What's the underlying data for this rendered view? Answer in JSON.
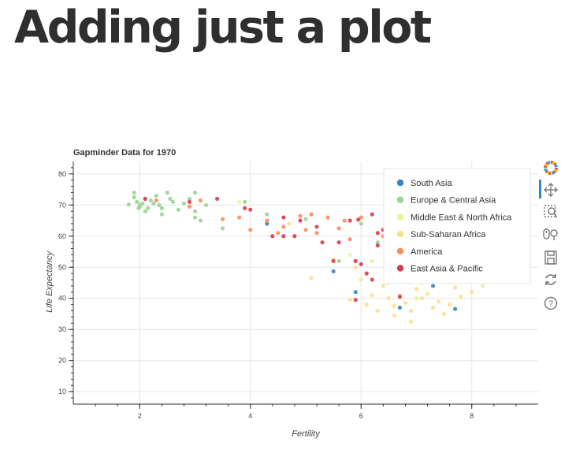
{
  "slide": {
    "title": "Adding just a plot"
  },
  "chart_data": {
    "type": "scatter",
    "title": "Gapminder Data for 1970",
    "xlabel": "Fertility",
    "ylabel": "Life Expectancy",
    "xlim": [
      0.8,
      9.2
    ],
    "ylim": [
      6,
      84
    ],
    "xticks": [
      2,
      4,
      6,
      8
    ],
    "yticks": [
      10,
      20,
      30,
      40,
      50,
      60,
      70,
      80
    ],
    "grid": true,
    "legend_position": "top-right",
    "series": [
      {
        "name": "South Asia",
        "color": "#3288bd",
        "points": [
          [
            5.5,
            48.7
          ],
          [
            5.9,
            42
          ],
          [
            6.7,
            37
          ],
          [
            7.3,
            44
          ],
          [
            7.7,
            36.6
          ],
          [
            4.3,
            64
          ]
        ]
      },
      {
        "name": "Europe & Central Asia",
        "color": "#99d594",
        "points": [
          [
            1.8,
            70.2
          ],
          [
            1.9,
            74
          ],
          [
            1.95,
            71
          ],
          [
            2.0,
            69.5
          ],
          [
            2.05,
            70.5
          ],
          [
            2.1,
            72
          ],
          [
            2.2,
            71.5
          ],
          [
            2.3,
            73
          ],
          [
            2.35,
            70
          ],
          [
            2.4,
            69
          ],
          [
            2.5,
            74
          ],
          [
            2.55,
            72
          ],
          [
            2.6,
            71
          ],
          [
            2.7,
            68.5
          ],
          [
            2.4,
            67
          ],
          [
            2.1,
            68
          ],
          [
            2.9,
            72
          ],
          [
            3.0,
            68
          ],
          [
            3.1,
            65
          ],
          [
            3.2,
            70
          ],
          [
            3.0,
            74
          ],
          [
            2.8,
            70.5
          ],
          [
            1.9,
            72.5
          ],
          [
            2.0,
            70
          ],
          [
            2.15,
            69
          ],
          [
            2.25,
            70.5
          ],
          [
            3.5,
            62.5
          ],
          [
            3.9,
            71
          ],
          [
            4.3,
            67
          ],
          [
            5.0,
            65.5
          ],
          [
            5.6,
            52
          ],
          [
            6.0,
            64
          ],
          [
            6.3,
            58
          ],
          [
            3.0,
            66
          ],
          [
            1.98,
            69
          ]
        ]
      },
      {
        "name": "Middle East & North Africa",
        "color": "#e6f598",
        "points": [
          [
            3.8,
            71
          ],
          [
            5.8,
            54
          ],
          [
            6.2,
            52
          ],
          [
            6.5,
            45
          ],
          [
            7.0,
            47
          ],
          [
            7.3,
            51
          ],
          [
            7.8,
            55
          ],
          [
            8.2,
            44
          ],
          [
            7.0,
            40
          ],
          [
            6.8,
            48
          ]
        ]
      },
      {
        "name": "Sub-Saharan Africa",
        "color": "#fee08b",
        "points": [
          [
            5.1,
            46.5
          ],
          [
            5.8,
            39.5
          ],
          [
            6.1,
            38
          ],
          [
            6.3,
            36
          ],
          [
            6.5,
            40
          ],
          [
            6.6,
            34.5
          ],
          [
            6.7,
            41
          ],
          [
            6.8,
            38.5
          ],
          [
            6.9,
            32.5
          ],
          [
            6.9,
            36
          ],
          [
            7.0,
            43
          ],
          [
            7.1,
            40
          ],
          [
            7.2,
            41.5
          ],
          [
            7.3,
            37
          ],
          [
            7.4,
            39
          ],
          [
            7.5,
            35
          ],
          [
            7.6,
            38
          ],
          [
            7.7,
            43.5
          ],
          [
            7.8,
            40.5
          ],
          [
            8.0,
            42
          ],
          [
            6.4,
            44
          ],
          [
            6.0,
            46
          ],
          [
            6.2,
            41
          ],
          [
            6.6,
            37.5
          ],
          [
            7.1,
            45
          ],
          [
            5.5,
            52.5
          ],
          [
            4.7,
            64
          ],
          [
            5.9,
            50
          ]
        ]
      },
      {
        "name": "America",
        "color": "#fc8d59",
        "points": [
          [
            2.3,
            71.5
          ],
          [
            2.9,
            69.5
          ],
          [
            3.1,
            71.5
          ],
          [
            3.5,
            65.5
          ],
          [
            3.8,
            66
          ],
          [
            4.0,
            62
          ],
          [
            4.3,
            65
          ],
          [
            4.6,
            63
          ],
          [
            4.9,
            66.5
          ],
          [
            5.1,
            67
          ],
          [
            5.4,
            66
          ],
          [
            5.6,
            62.5
          ],
          [
            5.7,
            65
          ],
          [
            6.0,
            66
          ],
          [
            6.4,
            60
          ],
          [
            6.6,
            55
          ],
          [
            5.8,
            59
          ],
          [
            5.2,
            61
          ],
          [
            5.0,
            62
          ],
          [
            4.5,
            61
          ]
        ]
      },
      {
        "name": "East Asia & Pacific",
        "color": "#d53e4f",
        "points": [
          [
            2.1,
            72
          ],
          [
            2.9,
            71
          ],
          [
            3.4,
            72
          ],
          [
            3.9,
            69
          ],
          [
            4.4,
            60
          ],
          [
            4.6,
            66
          ],
          [
            4.9,
            65
          ],
          [
            5.2,
            63
          ],
          [
            5.5,
            52
          ],
          [
            5.6,
            58
          ],
          [
            5.9,
            52
          ],
          [
            6.0,
            51
          ],
          [
            6.1,
            48
          ],
          [
            6.2,
            46
          ],
          [
            6.3,
            57
          ],
          [
            6.4,
            62
          ],
          [
            6.5,
            51
          ],
          [
            6.6,
            50
          ],
          [
            5.9,
            39.5
          ],
          [
            6.7,
            40.5
          ],
          [
            4.0,
            68.5
          ],
          [
            4.8,
            60
          ],
          [
            5.3,
            58
          ],
          [
            4.6,
            60
          ],
          [
            6.2,
            67
          ],
          [
            6.3,
            61
          ],
          [
            5.8,
            65
          ],
          [
            5.95,
            65.3
          ]
        ]
      }
    ]
  },
  "toolbar": {
    "tools": [
      "bokeh-logo-icon",
      "pan-icon",
      "box-zoom-icon",
      "wheel-zoom-icon",
      "save-icon",
      "reset-icon",
      "help-icon"
    ]
  }
}
